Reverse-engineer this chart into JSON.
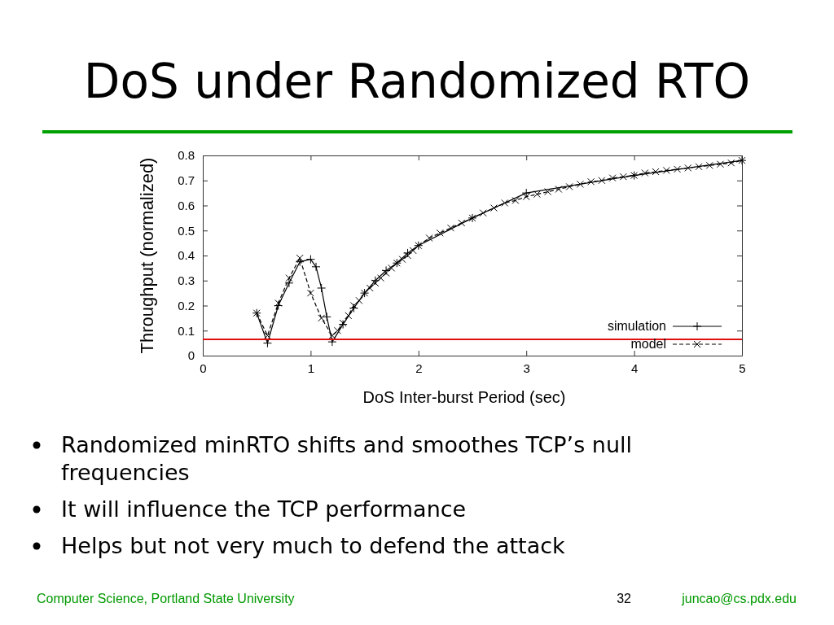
{
  "chart_data": {
    "type": "line",
    "title": "DoS under Randomized RTO",
    "xlabel": "DoS Inter-burst Period (sec)",
    "ylabel": "Throughput (normalized)",
    "xlim": [
      0,
      5
    ],
    "xticks": [
      0,
      1,
      2,
      3,
      4,
      5
    ],
    "ylim": [
      0,
      0.8
    ],
    "yticks": [
      0,
      0.1,
      0.2,
      0.3,
      0.4,
      0.5,
      0.6,
      0.7,
      0.8
    ],
    "grid": false,
    "legend": "bottom right",
    "series": [
      {
        "name": "simulation",
        "color": "#000000",
        "marker": "plus",
        "line_style": "solid",
        "x": [
          0.5,
          0.6,
          0.7,
          0.8,
          0.9,
          1.0,
          1.05,
          1.1,
          1.15,
          1.2,
          1.3,
          1.4,
          1.5,
          1.6,
          1.7,
          1.8,
          1.9,
          2.0,
          2.5,
          3.0,
          4.0,
          5.0
        ],
        "values": [
          0.17,
          0.05,
          0.2,
          0.29,
          0.375,
          0.385,
          0.355,
          0.27,
          0.155,
          0.055,
          0.125,
          0.19,
          0.25,
          0.3,
          0.34,
          0.37,
          0.41,
          0.44,
          0.55,
          0.65,
          0.72,
          0.78
        ]
      },
      {
        "name": "model",
        "color": "#000000",
        "marker": "cross",
        "line_style": "dashed",
        "x": [
          0.5,
          0.6,
          0.7,
          0.8,
          0.9,
          1.0,
          1.1,
          1.2,
          1.25,
          1.3,
          1.35,
          1.4,
          1.45,
          1.5,
          1.55,
          1.6,
          1.65,
          1.7,
          1.75,
          1.8,
          1.85,
          1.9,
          1.95,
          2.0,
          2.1,
          2.2,
          2.3,
          2.4,
          2.5,
          2.6,
          2.7,
          2.8,
          2.9,
          3.0,
          3.1,
          3.2,
          3.3,
          3.4,
          3.5,
          3.6,
          3.7,
          3.8,
          3.9,
          4.0,
          4.1,
          4.2,
          4.3,
          4.4,
          4.5,
          4.6,
          4.7,
          4.8,
          4.9,
          5.0
        ],
        "values": [
          0.17,
          0.08,
          0.21,
          0.31,
          0.39,
          0.25,
          0.15,
          0.08,
          0.1,
          0.13,
          0.16,
          0.2,
          0.22,
          0.25,
          0.27,
          0.29,
          0.31,
          0.33,
          0.35,
          0.37,
          0.385,
          0.4,
          0.42,
          0.44,
          0.47,
          0.49,
          0.51,
          0.53,
          0.55,
          0.57,
          0.59,
          0.61,
          0.62,
          0.635,
          0.645,
          0.655,
          0.665,
          0.675,
          0.685,
          0.695,
          0.7,
          0.71,
          0.715,
          0.72,
          0.73,
          0.735,
          0.74,
          0.745,
          0.75,
          0.755,
          0.76,
          0.765,
          0.77,
          0.78
        ]
      }
    ],
    "ref_lines": [
      {
        "axis": "y",
        "value": 0.065,
        "color": "#e01010"
      }
    ],
    "annotations": [
      "Randomized minRTO shifts and smoothes TCP’s null frequencies",
      "It will influence the TCP performance",
      "Helps but not very much to defend the attack",
      "Computer Science, Portland State University",
      "32",
      "juncao@cs.pdx.edu"
    ]
  }
}
